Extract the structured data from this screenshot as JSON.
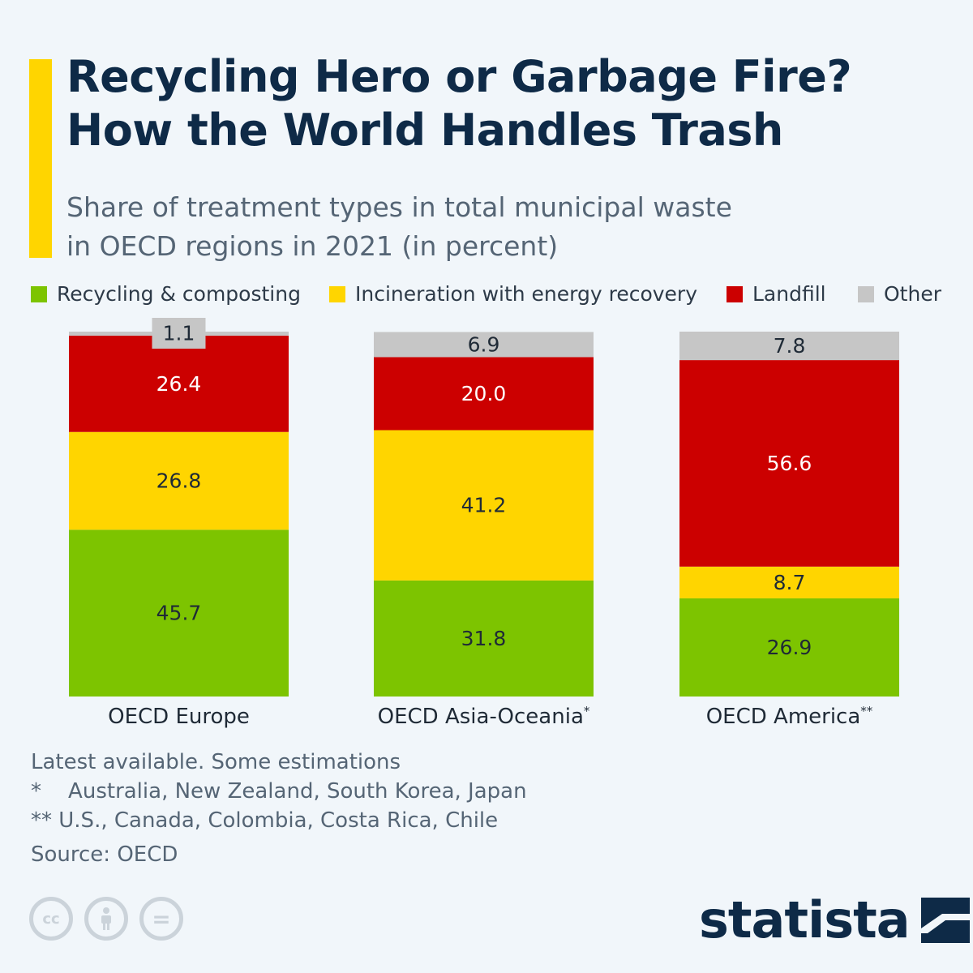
{
  "title_lines": [
    "Recycling Hero or Garbage Fire?",
    "How the World Handles Trash"
  ],
  "subtitle_lines": [
    "Share of treatment types in total municipal waste",
    "in OECD regions in 2021 (in percent)"
  ],
  "colors": {
    "accent": "#ffd500",
    "recycling": "#7dc400",
    "incineration": "#ffd500",
    "landfill": "#cc0000",
    "other": "#c6c6c6",
    "title": "#0e2a47"
  },
  "legend": [
    {
      "label": "Recycling & composting",
      "color": "#7dc400"
    },
    {
      "label": "Incineration with energy recovery",
      "color": "#ffd500"
    },
    {
      "label": "Landfill",
      "color": "#cc0000"
    },
    {
      "label": "Other",
      "color": "#c6c6c6"
    }
  ],
  "chart_data": {
    "type": "bar",
    "stacked": true,
    "categories": [
      "OECD Europe",
      "OECD Asia-Oceania*",
      "OECD America**"
    ],
    "series": [
      {
        "name": "Recycling & composting",
        "values": [
          45.7,
          31.8,
          26.9
        ]
      },
      {
        "name": "Incineration with energy recovery",
        "values": [
          26.8,
          41.2,
          8.7
        ]
      },
      {
        "name": "Landfill",
        "values": [
          26.4,
          20.0,
          56.6
        ]
      },
      {
        "name": "Other",
        "values": [
          1.1,
          6.9,
          7.8
        ]
      }
    ],
    "value_labels": [
      [
        "45.7",
        "31.8",
        "26.9"
      ],
      [
        "26.8",
        "41.2",
        "8.7"
      ],
      [
        "26.4",
        "20.0",
        "56.6"
      ],
      [
        "1.1",
        "6.9",
        "7.8"
      ]
    ],
    "category_labels": [
      {
        "name": "OECD Europe",
        "sup": ""
      },
      {
        "name": "OECD Asia-Oceania",
        "sup": "*"
      },
      {
        "name": "OECD America",
        "sup": "**"
      }
    ],
    "ylim": [
      0,
      100
    ],
    "grid": false,
    "legend_position": "top"
  },
  "footnotes": {
    "note": "Latest available. Some estimations",
    "star1": "*    Australia, New Zealand, South Korea, Japan",
    "star2": "** U.S., Canada, Colombia, Costa Rica, Chile",
    "source": "Source: OECD"
  },
  "license_icons": [
    "cc-icon",
    "attribution-icon",
    "no-derivatives-icon"
  ],
  "license_text": {
    "cc": "cc",
    "eq": "="
  },
  "brand": "statista"
}
